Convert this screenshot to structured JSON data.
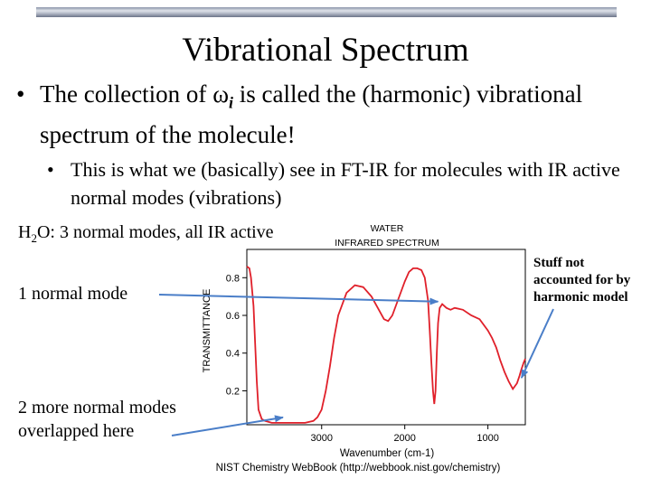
{
  "slide": {
    "title": "Vibrational Spectrum",
    "bullet1_prefix": "The collection of ",
    "bullet1_omega": "ω",
    "bullet1_sub": "i",
    "bullet1_suffix": " is called the (harmonic) vibrational spectrum of the molecule!",
    "bullet2": "This is what we (basically) see in FT-IR for molecules with IR active normal modes (vibrations)",
    "h2o_prefix": "H",
    "h2o_sub": "2",
    "h2o_suffix": "O: 3 normal modes, all IR active",
    "label_mode1": "1 normal mode",
    "label_mode2_line1": "2 more normal modes",
    "label_mode2_line2": "overlapped here",
    "label_stuff_line1": "Stuff not",
    "label_stuff_line2": "accounted for by",
    "label_stuff_line3": "harmonic model",
    "bullet_symbol": "•"
  },
  "chart_data": {
    "type": "line",
    "title_line1": "WATER",
    "title_line2": "INFRARED SPECTRUM",
    "xlabel": "Wavenumber (cm-1)",
    "ylabel": "TRANSMITTANCE",
    "source": "NIST Chemistry WebBook (http://webbook.nist.gov/chemistry)",
    "x_reversed": true,
    "xlim": [
      3900,
      550
    ],
    "ylim": [
      0.02,
      0.95
    ],
    "x_ticks": [
      "3000",
      "2000",
      "1000"
    ],
    "y_ticks": [
      "0.8",
      "0.6",
      "0.4",
      "0.2"
    ],
    "series_color": "#e0202a",
    "series": [
      {
        "x": [
          3900,
          3870,
          3850,
          3820,
          3800,
          3780,
          3760,
          3720,
          3680,
          3600,
          3500,
          3400,
          3300,
          3200,
          3100,
          3050,
          3000,
          2950,
          2900,
          2850,
          2800,
          2700,
          2600,
          2500,
          2400,
          2300,
          2250,
          2200,
          2150,
          2100,
          2050,
          2000,
          1950,
          1900,
          1850,
          1800,
          1760,
          1720,
          1700,
          1680,
          1660,
          1645,
          1630,
          1615,
          1600,
          1580,
          1550,
          1500,
          1450,
          1400,
          1300,
          1200,
          1100,
          1000,
          950,
          900,
          850,
          800,
          750,
          700,
          650,
          620,
          600,
          570,
          550
        ],
        "y": [
          0.86,
          0.85,
          0.8,
          0.65,
          0.45,
          0.25,
          0.1,
          0.05,
          0.04,
          0.03,
          0.03,
          0.03,
          0.03,
          0.03,
          0.04,
          0.06,
          0.1,
          0.2,
          0.33,
          0.48,
          0.6,
          0.72,
          0.76,
          0.75,
          0.7,
          0.62,
          0.58,
          0.57,
          0.6,
          0.66,
          0.72,
          0.78,
          0.83,
          0.85,
          0.85,
          0.84,
          0.8,
          0.68,
          0.52,
          0.35,
          0.2,
          0.13,
          0.2,
          0.4,
          0.56,
          0.64,
          0.66,
          0.64,
          0.63,
          0.64,
          0.63,
          0.6,
          0.58,
          0.52,
          0.48,
          0.43,
          0.36,
          0.3,
          0.25,
          0.21,
          0.24,
          0.28,
          0.31,
          0.35,
          0.37
        ]
      }
    ],
    "annotations": [
      {
        "label": "1 normal mode",
        "points_to_x": 1645
      },
      {
        "label": "2 more normal modes overlapped here",
        "points_to_x": 3400
      },
      {
        "label": "Stuff not accounted for by harmonic model",
        "points_to_x": 650
      }
    ]
  }
}
